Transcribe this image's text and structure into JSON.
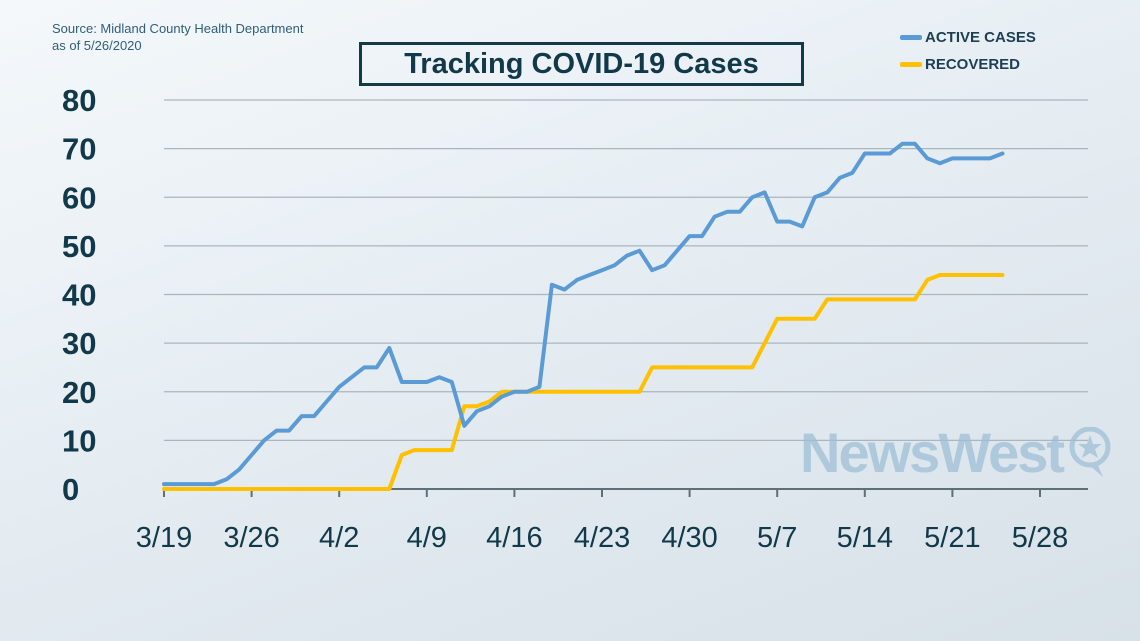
{
  "source": {
    "line1": "Source: Midland County Health Department",
    "line2": "as of 5/26/2020"
  },
  "logo_text": "NewsWest",
  "colors": {
    "active": "#5b9bd5",
    "recovered": "#ffc000",
    "grid": "#a9b6bf",
    "text": "#12394a"
  },
  "chart_data": {
    "type": "line",
    "title": "Tracking COVID-19 Cases",
    "xlabel": "",
    "ylabel": "",
    "ylim": [
      0,
      80
    ],
    "yticks": [
      "0",
      "10",
      "20",
      "30",
      "40",
      "50",
      "60",
      "70",
      "80"
    ],
    "xticks": [
      "3/19",
      "3/26",
      "4/2",
      "4/9",
      "4/16",
      "4/23",
      "4/30",
      "5/7",
      "5/14",
      "5/21",
      "5/28"
    ],
    "x_start": "3/19",
    "x_end": "5/28",
    "grid": "horizontal",
    "legend_position": "top-right",
    "series": [
      {
        "name": "ACTIVE CASES",
        "color": "#5b9bd5",
        "points": [
          [
            "3/19",
            1
          ],
          [
            "3/20",
            1
          ],
          [
            "3/21",
            1
          ],
          [
            "3/22",
            1
          ],
          [
            "3/23",
            1
          ],
          [
            "3/24",
            2
          ],
          [
            "3/25",
            4
          ],
          [
            "3/26",
            7
          ],
          [
            "3/27",
            10
          ],
          [
            "3/28",
            12
          ],
          [
            "3/29",
            12
          ],
          [
            "3/30",
            15
          ],
          [
            "3/31",
            15
          ],
          [
            "4/1",
            18
          ],
          [
            "4/2",
            21
          ],
          [
            "4/3",
            23
          ],
          [
            "4/4",
            25
          ],
          [
            "4/5",
            25
          ],
          [
            "4/6",
            29
          ],
          [
            "4/7",
            22
          ],
          [
            "4/8",
            22
          ],
          [
            "4/9",
            22
          ],
          [
            "4/10",
            23
          ],
          [
            "4/11",
            22
          ],
          [
            "4/12",
            13
          ],
          [
            "4/13",
            16
          ],
          [
            "4/14",
            17
          ],
          [
            "4/15",
            19
          ],
          [
            "4/16",
            20
          ],
          [
            "4/17",
            20
          ],
          [
            "4/18",
            21
          ],
          [
            "4/19",
            42
          ],
          [
            "4/20",
            41
          ],
          [
            "4/21",
            43
          ],
          [
            "4/22",
            44
          ],
          [
            "4/23",
            45
          ],
          [
            "4/24",
            46
          ],
          [
            "4/25",
            48
          ],
          [
            "4/26",
            49
          ],
          [
            "4/27",
            45
          ],
          [
            "4/28",
            46
          ],
          [
            "4/29",
            49
          ],
          [
            "4/30",
            52
          ],
          [
            "5/1",
            52
          ],
          [
            "5/2",
            56
          ],
          [
            "5/3",
            57
          ],
          [
            "5/4",
            57
          ],
          [
            "5/5",
            60
          ],
          [
            "5/6",
            61
          ],
          [
            "5/7",
            55
          ],
          [
            "5/8",
            55
          ],
          [
            "5/9",
            54
          ],
          [
            "5/10",
            60
          ],
          [
            "5/11",
            61
          ],
          [
            "5/12",
            64
          ],
          [
            "5/13",
            65
          ],
          [
            "5/14",
            69
          ],
          [
            "5/15",
            69
          ],
          [
            "5/16",
            69
          ],
          [
            "5/17",
            71
          ],
          [
            "5/18",
            71
          ],
          [
            "5/19",
            68
          ],
          [
            "5/20",
            67
          ],
          [
            "5/21",
            68
          ],
          [
            "5/22",
            68
          ],
          [
            "5/23",
            68
          ],
          [
            "5/24",
            68
          ],
          [
            "5/25",
            69
          ]
        ]
      },
      {
        "name": "RECOVERED",
        "color": "#ffc000",
        "points": [
          [
            "3/19",
            0
          ],
          [
            "3/20",
            0
          ],
          [
            "3/21",
            0
          ],
          [
            "3/22",
            0
          ],
          [
            "3/23",
            0
          ],
          [
            "3/24",
            0
          ],
          [
            "3/25",
            0
          ],
          [
            "3/26",
            0
          ],
          [
            "3/27",
            0
          ],
          [
            "3/28",
            0
          ],
          [
            "3/29",
            0
          ],
          [
            "3/30",
            0
          ],
          [
            "3/31",
            0
          ],
          [
            "4/1",
            0
          ],
          [
            "4/2",
            0
          ],
          [
            "4/3",
            0
          ],
          [
            "4/4",
            0
          ],
          [
            "4/5",
            0
          ],
          [
            "4/6",
            0
          ],
          [
            "4/7",
            7
          ],
          [
            "4/8",
            8
          ],
          [
            "4/9",
            8
          ],
          [
            "4/10",
            8
          ],
          [
            "4/11",
            8
          ],
          [
            "4/12",
            17
          ],
          [
            "4/13",
            17
          ],
          [
            "4/14",
            18
          ],
          [
            "4/15",
            20
          ],
          [
            "4/16",
            20
          ],
          [
            "4/17",
            20
          ],
          [
            "4/18",
            20
          ],
          [
            "4/19",
            20
          ],
          [
            "4/20",
            20
          ],
          [
            "4/21",
            20
          ],
          [
            "4/22",
            20
          ],
          [
            "4/23",
            20
          ],
          [
            "4/24",
            20
          ],
          [
            "4/25",
            20
          ],
          [
            "4/26",
            20
          ],
          [
            "4/27",
            25
          ],
          [
            "4/28",
            25
          ],
          [
            "4/29",
            25
          ],
          [
            "4/30",
            25
          ],
          [
            "5/1",
            25
          ],
          [
            "5/2",
            25
          ],
          [
            "5/3",
            25
          ],
          [
            "5/4",
            25
          ],
          [
            "5/5",
            25
          ],
          [
            "5/6",
            30
          ],
          [
            "5/7",
            35
          ],
          [
            "5/8",
            35
          ],
          [
            "5/9",
            35
          ],
          [
            "5/10",
            35
          ],
          [
            "5/11",
            39
          ],
          [
            "5/12",
            39
          ],
          [
            "5/13",
            39
          ],
          [
            "5/14",
            39
          ],
          [
            "5/15",
            39
          ],
          [
            "5/16",
            39
          ],
          [
            "5/17",
            39
          ],
          [
            "5/18",
            39
          ],
          [
            "5/19",
            43
          ],
          [
            "5/20",
            44
          ],
          [
            "5/21",
            44
          ],
          [
            "5/22",
            44
          ],
          [
            "5/23",
            44
          ],
          [
            "5/24",
            44
          ],
          [
            "5/25",
            44
          ]
        ]
      }
    ]
  }
}
